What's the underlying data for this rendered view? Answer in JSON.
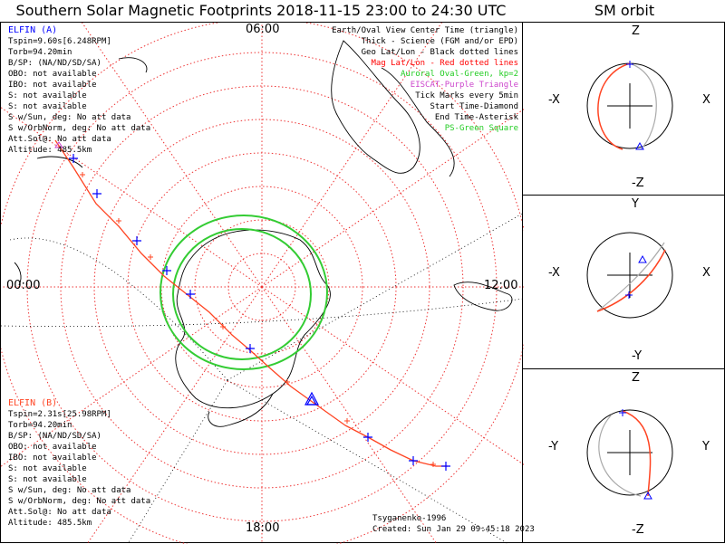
{
  "title": "Southern Solar Magnetic Footprints 2018-11-15 23:00 to 24:30 UTC",
  "orbit_title": "SM orbit",
  "clock": {
    "top": "06:00",
    "left": "00:00",
    "right": "12:00",
    "bottom": "18:00"
  },
  "elfin_a": {
    "name": "ELFIN (A)",
    "lines": [
      "Tspin=9.60s[6.248RPM]",
      "Torb=94.20min",
      "B/SP: (NA/ND/SD/SA)",
      "OBO: not available",
      "IBO: not available",
      "S: not available",
      "S: not available",
      "S w/Sun, deg: No att data",
      "S w/OrbNorm, deg: No att data",
      "Att.Sol@: No att data",
      "Altitude: 485.5km"
    ]
  },
  "elfin_b": {
    "name": "ELFIN (B)",
    "lines": [
      "Tspin=2.31s[25.98RPM]",
      "Torb=94.20min",
      "B/SP: (NA/ND/SD/SA)",
      "OBO: not available",
      "IBO: not available",
      "S: not available",
      "S: not available",
      "S w/Sun, deg: No att data",
      "S w/OrbNorm, deg: No att data",
      "Att.Sol@: No att data",
      "Altitude: 485.5km"
    ]
  },
  "legend": [
    {
      "text": "Earth/Oval View Center Time (triangle)",
      "color": "#000000"
    },
    {
      "text": "Thick - Science (FGM and/or EPD)",
      "color": "#000000"
    },
    {
      "text": "Geo Lat/Lon - Black dotted lines",
      "color": "#000000"
    },
    {
      "text": "Mag Lat/Lon - Red dotted lines",
      "color": "#ff0000"
    },
    {
      "text": "Auroral Oval-Green, kp=2",
      "color": "#22cc22"
    },
    {
      "text": "EISCAT-Purple Triangle",
      "color": "#cc44cc"
    },
    {
      "text": "Tick Marks every 5min",
      "color": "#000000"
    },
    {
      "text": "Start Time-Diamond",
      "color": "#000000"
    },
    {
      "text": "End Time-Asterisk",
      "color": "#000000"
    },
    {
      "text": "PS-Green Square",
      "color": "#22cc22"
    }
  ],
  "credits": {
    "model": "Tsyganenko-1996",
    "created": "Created: Sun Jan 29 09:45:18 2023"
  },
  "orbit_panels": [
    {
      "top": "Z",
      "bottom": "-Z",
      "left": "-X",
      "right": "X"
    },
    {
      "top": "Y",
      "bottom": "-Y",
      "left": "-X",
      "right": "X"
    },
    {
      "top": "Z",
      "bottom": "-Z",
      "left": "-Y",
      "right": "Y"
    }
  ],
  "colors": {
    "elfin_a": "#0000ff",
    "elfin_b": "#ff4422",
    "oval": "#33cc33",
    "maggrid": "#ff0000"
  }
}
